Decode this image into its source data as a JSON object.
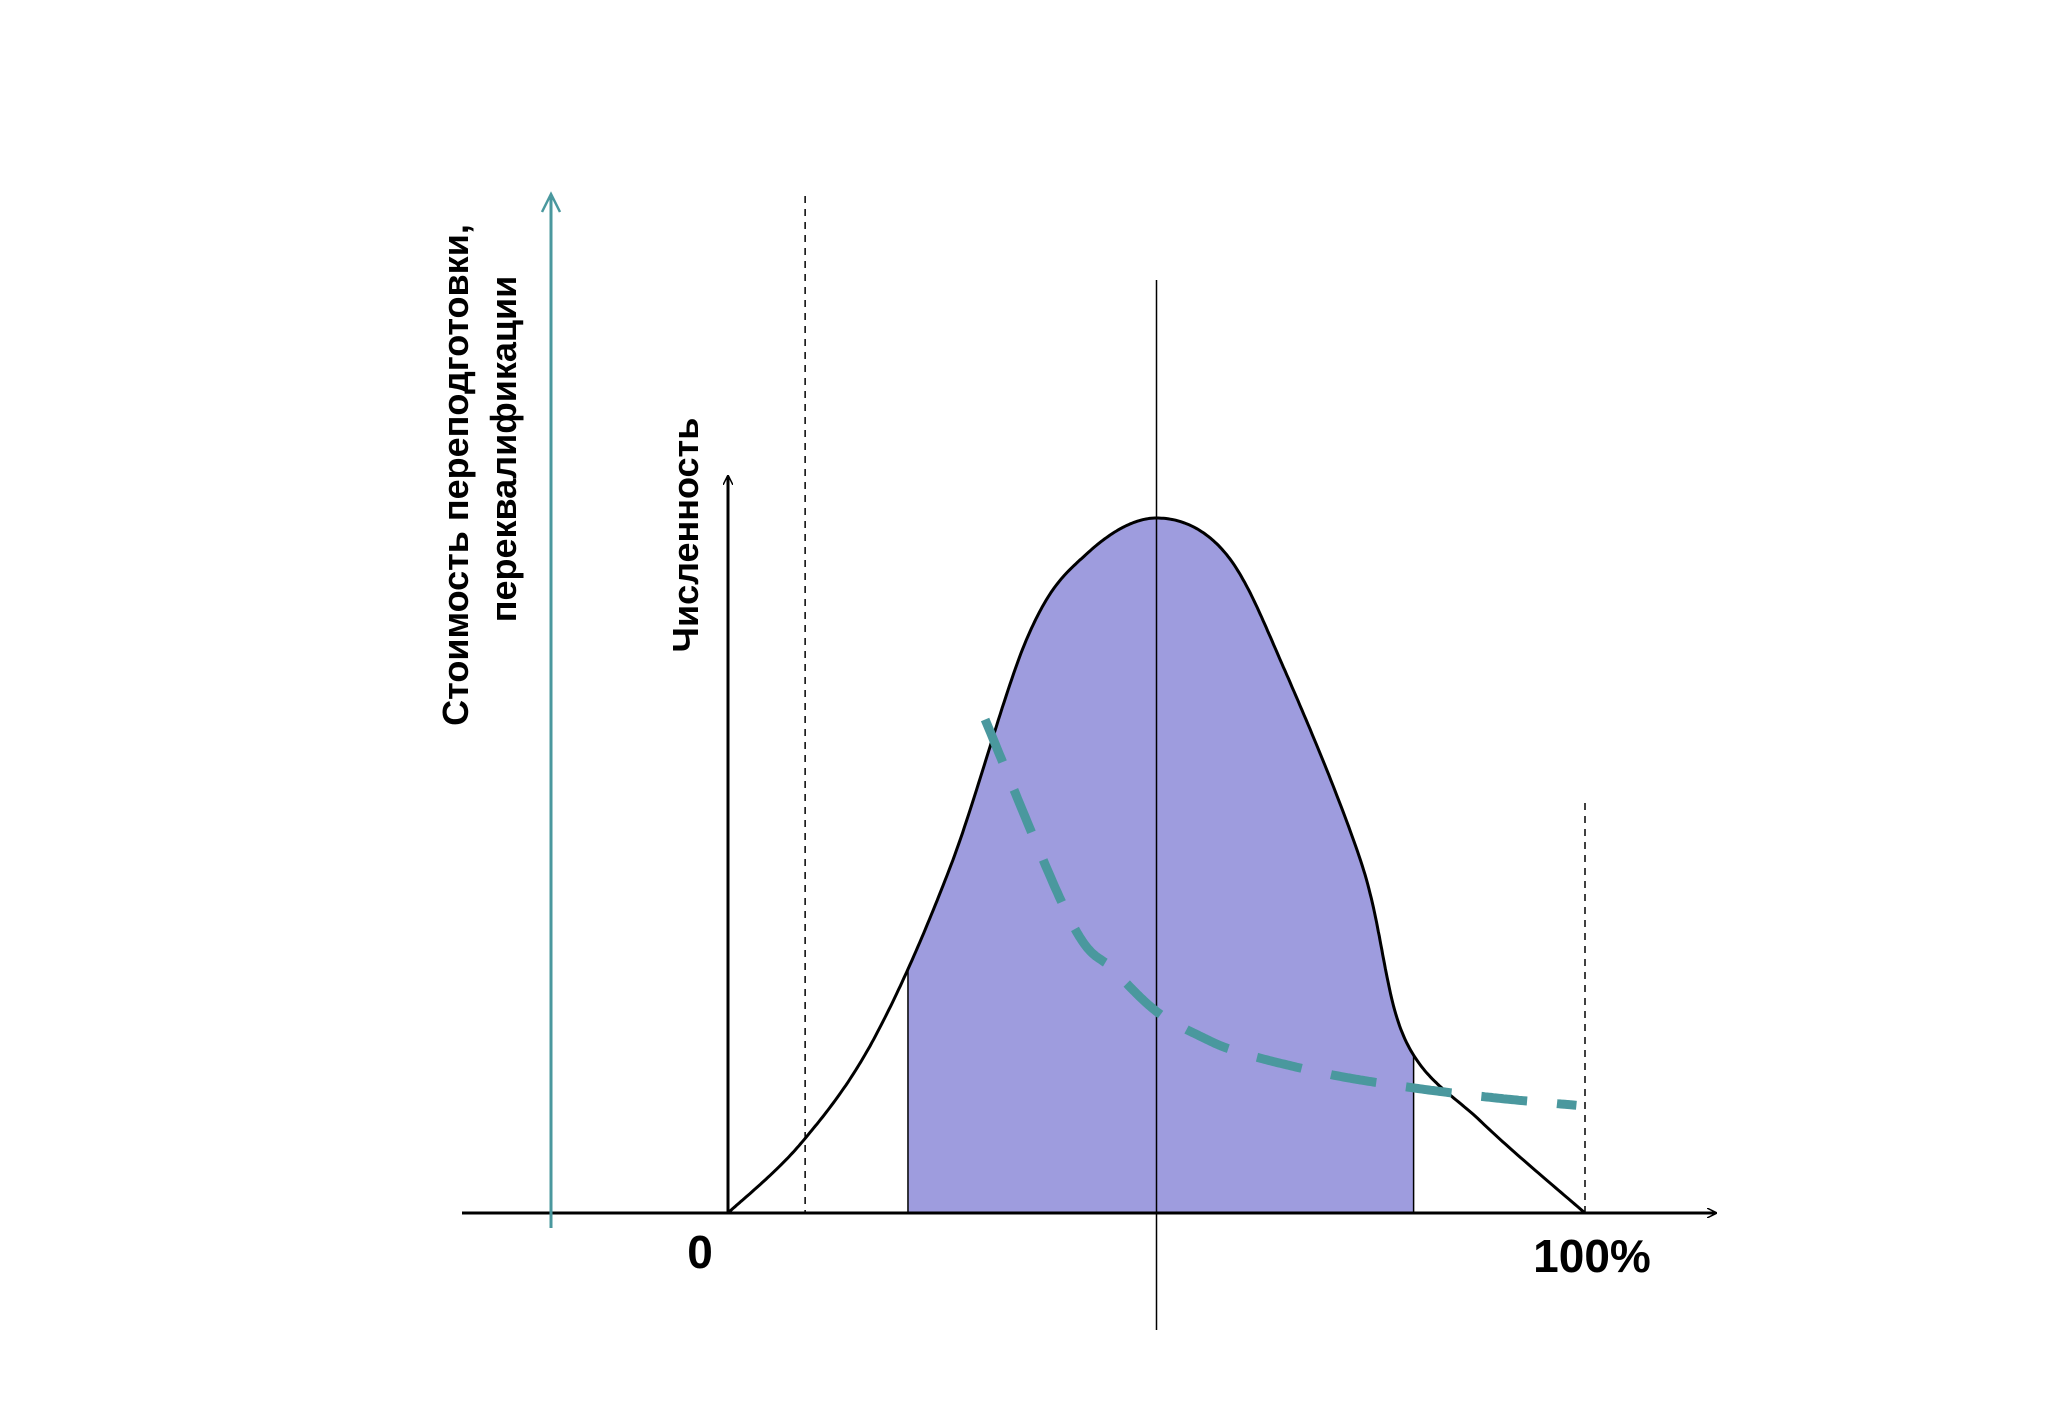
{
  "chart_data": {
    "type": "line",
    "colors": {
      "fill": "#9e9cde",
      "cost_curve": "#4a989e",
      "cost_axis": "#4a989e",
      "axis": "#000000"
    },
    "y2label_lines": [
      "Стоимость переподготовки,",
      "переквалификации"
    ],
    "ylabel": "Численность",
    "x_tick_labels": [
      "0",
      "100%"
    ],
    "xlim": [
      0,
      100
    ],
    "series": [
      {
        "style": "solid-filled-center",
        "shape": "bell",
        "x": [
          0,
          8.5,
          17,
          26,
          35,
          42,
          50,
          58,
          65,
          74,
          79,
          88,
          100
        ],
        "values": [
          0,
          10,
          25,
          50,
          83,
          95,
          100,
          95,
          78,
          50,
          25,
          13,
          0
        ],
        "filled_range": [
          21,
          80
        ]
      },
      {
        "style": "dashed",
        "x": [
          30,
          40,
          45,
          50,
          55,
          60,
          70,
          80,
          90,
          99
        ],
        "values": [
          71,
          42,
          35,
          29,
          25.5,
          23,
          20,
          18,
          16.5,
          15.5
        ]
      }
    ],
    "reference_lines": [
      9,
      50,
      100
    ],
    "grid": false
  }
}
